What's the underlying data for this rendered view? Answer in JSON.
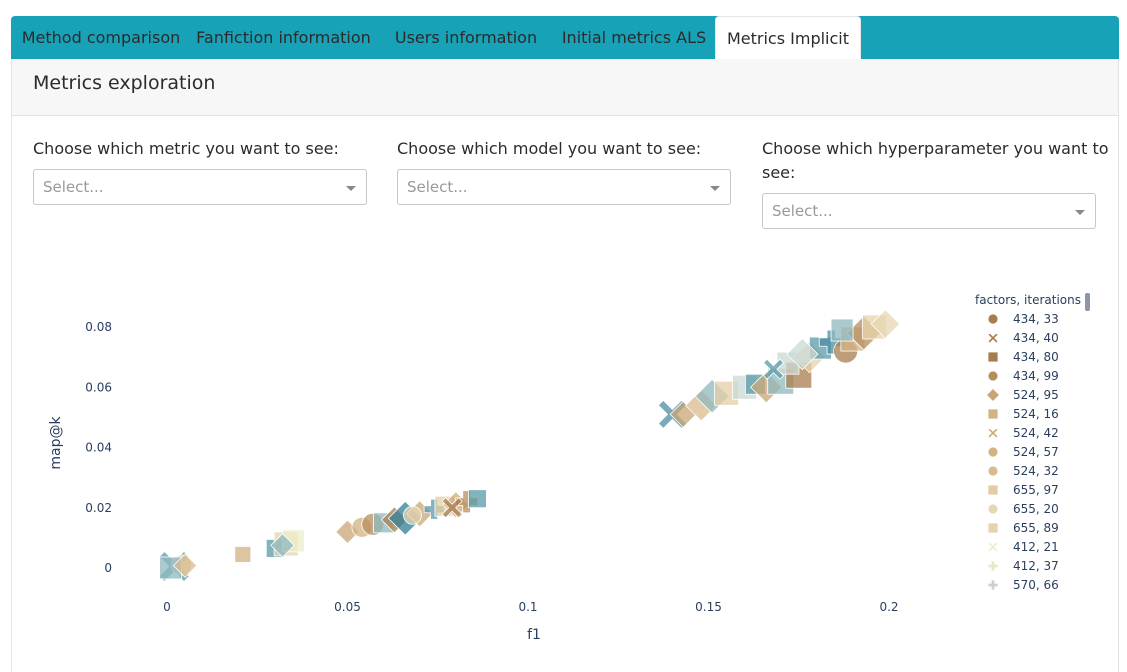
{
  "tabs": [
    {
      "label": "Method comparison",
      "active": false
    },
    {
      "label": "Fanfiction information",
      "active": false
    },
    {
      "label": "Users information",
      "active": false
    },
    {
      "label": "Initial metrics ALS",
      "active": false
    },
    {
      "label": "Metrics Implicit",
      "active": true
    }
  ],
  "panel": {
    "title": "Metrics exploration"
  },
  "controls": {
    "metric": {
      "label": "Choose which metric you want to see:",
      "placeholder": "Select..."
    },
    "model": {
      "label": "Choose which model you want to see:",
      "placeholder": "Select..."
    },
    "hyperparameter": {
      "label_line1": "Choose which hyperparameter you want to",
      "label_line2": "see:",
      "placeholder": "Select..."
    }
  },
  "colors": {
    "accent": "#17a2b8"
  },
  "chart_data": {
    "type": "scatter",
    "xlabel": "f1",
    "ylabel": "map@k",
    "x_ticks": [
      "0",
      "0.05",
      "0.1",
      "0.15",
      "0.2"
    ],
    "y_ticks": [
      "0",
      "0.02",
      "0.04",
      "0.06",
      "0.08"
    ],
    "xlim": [
      -0.01,
      0.22
    ],
    "ylim": [
      -0.01,
      0.085
    ],
    "legend_title": "factors, iterations",
    "legend_position": "right",
    "series": [
      {
        "name": "434, 33",
        "symbol": "circle",
        "color": "#a87d4e"
      },
      {
        "name": "434, 40",
        "symbol": "x",
        "color": "#a87d4e"
      },
      {
        "name": "434, 80",
        "symbol": "square",
        "color": "#a87d4e"
      },
      {
        "name": "434, 99",
        "symbol": "circle",
        "color": "#b58e5c"
      },
      {
        "name": "524, 95",
        "symbol": "diamond",
        "color": "#c9a574"
      },
      {
        "name": "524, 16",
        "symbol": "square",
        "color": "#d3b283"
      },
      {
        "name": "524, 42",
        "symbol": "x",
        "color": "#cfab7c"
      },
      {
        "name": "524, 57",
        "symbol": "circle",
        "color": "#d3b283"
      },
      {
        "name": "524, 32",
        "symbol": "circle",
        "color": "#d8bb8d"
      },
      {
        "name": "655, 97",
        "symbol": "square",
        "color": "#e4cda4"
      },
      {
        "name": "655, 20",
        "symbol": "circle",
        "color": "#e8d6b2"
      },
      {
        "name": "655, 89",
        "symbol": "square",
        "color": "#e6d3ab"
      },
      {
        "name": "412, 21",
        "symbol": "x",
        "color": "#ecedc9"
      },
      {
        "name": "412, 37",
        "symbol": "cross",
        "color": "#e6e8c4"
      },
      {
        "name": "570, 66",
        "symbol": "cross",
        "color": "#c9d2cf"
      }
    ],
    "points": [
      {
        "x": 0.002,
        "y": 0.0005,
        "symbol": "x",
        "color": "#5a9aa8",
        "size": 15
      },
      {
        "x": 0.004,
        "y": 0.001,
        "symbol": "circle",
        "color": "#e6d3ab",
        "size": 10
      },
      {
        "x": 0.001,
        "y": 0.0,
        "symbol": "square",
        "color": "#8fb8bd",
        "size": 11
      },
      {
        "x": 0.005,
        "y": 0.0008,
        "symbol": "diamond",
        "color": "#d8bb8d",
        "size": 9
      },
      {
        "x": 0.021,
        "y": 0.0045,
        "symbol": "square",
        "color": "#d3b283",
        "size": 8
      },
      {
        "x": 0.03,
        "y": 0.0065,
        "symbol": "square",
        "color": "#5a9aa8",
        "size": 9
      },
      {
        "x": 0.033,
        "y": 0.008,
        "symbol": "square",
        "color": "#e6d3ab",
        "size": 12
      },
      {
        "x": 0.035,
        "y": 0.009,
        "symbol": "square",
        "color": "#ecedc9",
        "size": 11
      },
      {
        "x": 0.032,
        "y": 0.0075,
        "symbol": "diamond",
        "color": "#8fb8bd",
        "size": 9
      },
      {
        "x": 0.05,
        "y": 0.012,
        "symbol": "diamond",
        "color": "#c9a574",
        "size": 9
      },
      {
        "x": 0.054,
        "y": 0.0135,
        "symbol": "circle",
        "color": "#d3b283",
        "size": 10
      },
      {
        "x": 0.057,
        "y": 0.0145,
        "symbol": "circle",
        "color": "#b58e5c",
        "size": 11
      },
      {
        "x": 0.06,
        "y": 0.015,
        "symbol": "square",
        "color": "#8fb8bd",
        "size": 10
      },
      {
        "x": 0.063,
        "y": 0.016,
        "symbol": "diamond",
        "color": "#a87d4e",
        "size": 10
      },
      {
        "x": 0.066,
        "y": 0.0165,
        "symbol": "diamond",
        "color": "#2e7f99",
        "size": 13
      },
      {
        "x": 0.07,
        "y": 0.018,
        "symbol": "diamond",
        "color": "#c9a574",
        "size": 10
      },
      {
        "x": 0.074,
        "y": 0.0195,
        "symbol": "cross",
        "color": "#5a9aa8",
        "size": 10
      },
      {
        "x": 0.077,
        "y": 0.0205,
        "symbol": "square",
        "color": "#e4cda4",
        "size": 10
      },
      {
        "x": 0.08,
        "y": 0.021,
        "symbol": "diamond",
        "color": "#cfab7c",
        "size": 10
      },
      {
        "x": 0.083,
        "y": 0.022,
        "symbol": "cross",
        "color": "#b58e5c",
        "size": 11
      },
      {
        "x": 0.086,
        "y": 0.023,
        "symbol": "square",
        "color": "#5a9aa8",
        "size": 9
      },
      {
        "x": 0.068,
        "y": 0.0175,
        "symbol": "circle",
        "color": "#e8d6b2",
        "size": 9
      },
      {
        "x": 0.079,
        "y": 0.02,
        "symbol": "x",
        "color": "#a87d4e",
        "size": 10
      },
      {
        "x": 0.14,
        "y": 0.051,
        "symbol": "x",
        "color": "#4e8ea3",
        "size": 14
      },
      {
        "x": 0.143,
        "y": 0.051,
        "symbol": "diamond",
        "color": "#c9a574",
        "size": 10
      },
      {
        "x": 0.148,
        "y": 0.054,
        "symbol": "diamond",
        "color": "#d8bb8d",
        "size": 12
      },
      {
        "x": 0.151,
        "y": 0.057,
        "symbol": "diamond",
        "color": "#8fb8bd",
        "size": 13
      },
      {
        "x": 0.155,
        "y": 0.058,
        "symbol": "square",
        "color": "#e4cda4",
        "size": 12
      },
      {
        "x": 0.16,
        "y": 0.06,
        "symbol": "square",
        "color": "#cbd9d6",
        "size": 12
      },
      {
        "x": 0.163,
        "y": 0.061,
        "symbol": "square",
        "color": "#5a9aa8",
        "size": 10
      },
      {
        "x": 0.166,
        "y": 0.06,
        "symbol": "diamond",
        "color": "#c9a574",
        "size": 12
      },
      {
        "x": 0.17,
        "y": 0.062,
        "symbol": "square",
        "color": "#8fb8bd",
        "size": 13
      },
      {
        "x": 0.175,
        "y": 0.064,
        "symbol": "square",
        "color": "#a87d4e",
        "size": 13
      },
      {
        "x": 0.172,
        "y": 0.068,
        "symbol": "square",
        "color": "#cbd9d6",
        "size": 11
      },
      {
        "x": 0.178,
        "y": 0.07,
        "symbol": "diamond",
        "color": "#e6d3ab",
        "size": 12
      },
      {
        "x": 0.181,
        "y": 0.073,
        "symbol": "square",
        "color": "#5a9aa8",
        "size": 11
      },
      {
        "x": 0.184,
        "y": 0.075,
        "symbol": "cross",
        "color": "#4e8ea3",
        "size": 12
      },
      {
        "x": 0.188,
        "y": 0.072,
        "symbol": "circle",
        "color": "#a87d4e",
        "size": 12
      },
      {
        "x": 0.19,
        "y": 0.076,
        "symbol": "square",
        "color": "#d3b283",
        "size": 12
      },
      {
        "x": 0.193,
        "y": 0.078,
        "symbol": "diamond",
        "color": "#b58e5c",
        "size": 13
      },
      {
        "x": 0.196,
        "y": 0.08,
        "symbol": "square",
        "color": "#e6d3ab",
        "size": 12
      },
      {
        "x": 0.199,
        "y": 0.081,
        "symbol": "diamond",
        "color": "#e8d6b2",
        "size": 11
      },
      {
        "x": 0.187,
        "y": 0.079,
        "symbol": "square",
        "color": "#8fb8bd",
        "size": 11
      },
      {
        "x": 0.176,
        "y": 0.071,
        "symbol": "diamond",
        "color": "#cbd9d6",
        "size": 12
      },
      {
        "x": 0.168,
        "y": 0.066,
        "symbol": "x",
        "color": "#5a9aa8",
        "size": 10
      }
    ]
  }
}
